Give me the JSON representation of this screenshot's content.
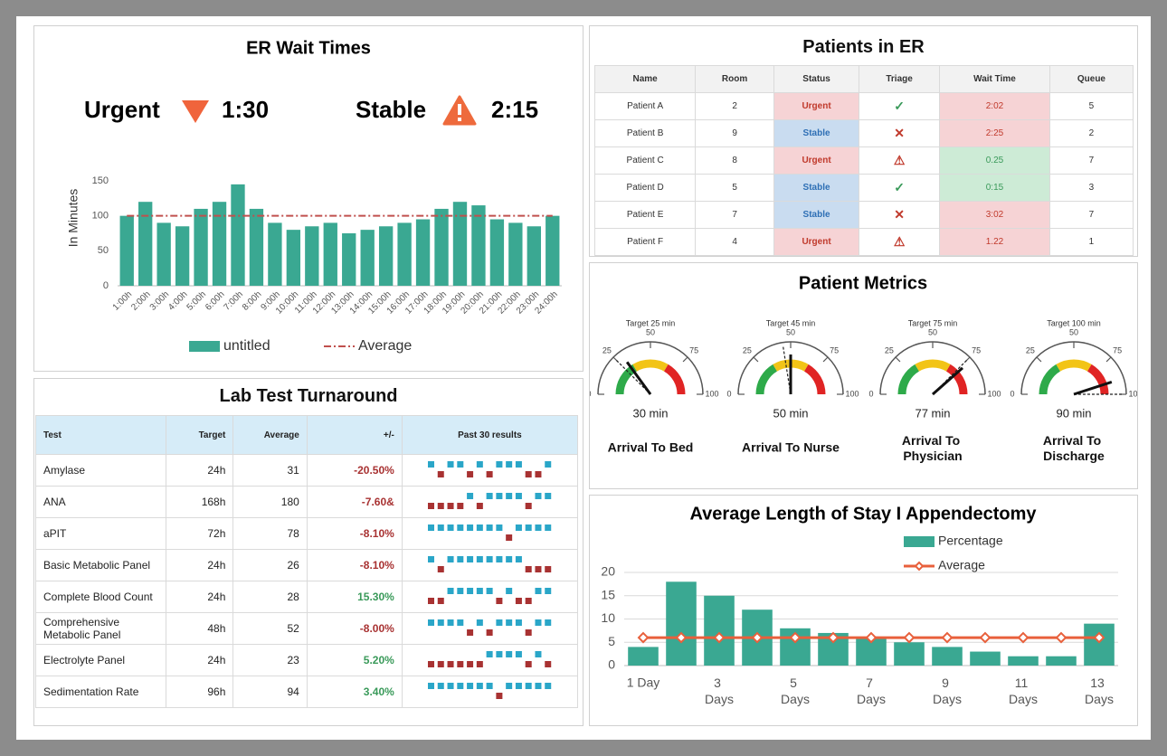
{
  "chart_data": [
    {
      "type": "bar",
      "title": "ER Wait Times",
      "ylabel": "In Minutes",
      "categories": [
        "1:00h",
        "2:00h",
        "3:00h",
        "4:00h",
        "5:00h",
        "6:00h",
        "7:00h",
        "8:00h",
        "9:00h",
        "10:00h",
        "11:00h",
        "12:00h",
        "13:00h",
        "14:00h",
        "15:00h",
        "16:00h",
        "17:00h",
        "18:00h",
        "19:00h",
        "20:00h",
        "21:00h",
        "22:00h",
        "23:00h",
        "24:00h"
      ],
      "series": [
        {
          "name": "untitled",
          "color": "#3aa892",
          "values": [
            100,
            120,
            90,
            85,
            110,
            120,
            145,
            110,
            90,
            80,
            85,
            90,
            75,
            80,
            85,
            90,
            95,
            110,
            120,
            115,
            95,
            90,
            85,
            100
          ]
        },
        {
          "name": "Average",
          "color": "#c0504d",
          "type": "line",
          "dash": true,
          "values": [
            100,
            100,
            100,
            100,
            100,
            100,
            100,
            100,
            100,
            100,
            100,
            100,
            100,
            100,
            100,
            100,
            100,
            100,
            100,
            100,
            100,
            100,
            100,
            100
          ]
        }
      ],
      "ylim": [
        0,
        150
      ],
      "yticks": [
        0,
        50,
        100,
        150
      ],
      "grid": false,
      "legend": "bottom"
    },
    {
      "type": "gauge",
      "title": "Patient Metrics",
      "lim": [
        0,
        100
      ],
      "ticks": [
        0,
        25,
        50,
        75,
        100
      ],
      "bands": [
        {
          "from": 0,
          "to": 33,
          "color": "#2eaa4a"
        },
        {
          "from": 33,
          "to": 67,
          "color": "#f2c417"
        },
        {
          "from": 67,
          "to": 100,
          "color": "#e02424"
        }
      ],
      "gauges": [
        {
          "name": "Arrival To Bed",
          "target": 25,
          "target_label": "Target 25 min",
          "value": 30,
          "value_label": "30 min"
        },
        {
          "name": "Arrival To Nurse",
          "target": 45,
          "target_label": "Target 45 min",
          "value": 50,
          "value_label": "50 min"
        },
        {
          "name": "Arrival To Physician",
          "target": 75,
          "target_label": "Target 75 min",
          "value": 77,
          "value_label": "77 min"
        },
        {
          "name": "Arrival To Discharge",
          "target": 100,
          "target_label": "Target 100 min",
          "value": 90,
          "value_label": "90 min"
        }
      ]
    },
    {
      "type": "bar",
      "title": "Average Length of Stay I Appendectomy",
      "categories": [
        "1 Day",
        null,
        "3 Days",
        null,
        "5 Days",
        null,
        "7 Days",
        null,
        "9 Days",
        null,
        "11 Days",
        null,
        "13 Days"
      ],
      "series": [
        {
          "name": "Percentage",
          "color": "#3aa892",
          "values": [
            4,
            18,
            15,
            12,
            8,
            7,
            6,
            5,
            4,
            3,
            2,
            2,
            9
          ]
        },
        {
          "name": "Average",
          "color": "#e8603c",
          "type": "line",
          "marker": "diamond",
          "values": [
            6,
            6,
            6,
            6,
            6,
            6,
            6,
            6,
            6,
            6,
            6,
            6,
            6
          ]
        }
      ],
      "ylim": [
        0,
        20
      ],
      "yticks": [
        0,
        5,
        10,
        15,
        20
      ],
      "grid": true,
      "legend": "top"
    }
  ],
  "er_kpis": [
    {
      "label": "Urgent",
      "value": "1:30"
    },
    {
      "label": "Stable",
      "value": "2:15"
    }
  ],
  "patients": {
    "title": "Patients in ER",
    "columns": [
      "Name",
      "Room",
      "Status",
      "Triage",
      "Wait Time",
      "Queue"
    ],
    "rows": [
      {
        "name": "Patient A",
        "room": 2,
        "status": "Urgent",
        "status_bg": "#f6d3d5",
        "status_fg": "#c0392b",
        "triage": "✓",
        "triage_color": "#3a9a5a",
        "wait": "2:02",
        "wait_bg": "#f6d3d5",
        "wait_fg": "#c0392b",
        "queue": 5
      },
      {
        "name": "Patient B",
        "room": 9,
        "status": "Stable",
        "status_bg": "#c9dcf0",
        "status_fg": "#2e6fb5",
        "triage": "✕",
        "triage_color": "#c0392b",
        "wait": "2:25",
        "wait_bg": "#f6d3d5",
        "wait_fg": "#c0392b",
        "queue": 2
      },
      {
        "name": "Patient C",
        "room": 8,
        "status": "Urgent",
        "status_bg": "#f6d3d5",
        "status_fg": "#c0392b",
        "triage": "⚠",
        "triage_color": "#c0392b",
        "wait": "0.25",
        "wait_bg": "#cdebd6",
        "wait_fg": "#3a9a5a",
        "queue": 7
      },
      {
        "name": "Patient D",
        "room": 5,
        "status": "Stable",
        "status_bg": "#c9dcf0",
        "status_fg": "#2e6fb5",
        "triage": "✓",
        "triage_color": "#3a9a5a",
        "wait": "0:15",
        "wait_bg": "#cdebd6",
        "wait_fg": "#3a9a5a",
        "queue": 3
      },
      {
        "name": "Patient E",
        "room": 7,
        "status": "Stable",
        "status_bg": "#c9dcf0",
        "status_fg": "#2e6fb5",
        "triage": "✕",
        "triage_color": "#c0392b",
        "wait": "3:02",
        "wait_bg": "#f6d3d5",
        "wait_fg": "#c0392b",
        "queue": 7
      },
      {
        "name": "Patient F",
        "room": 4,
        "status": "Urgent",
        "status_bg": "#f6d3d5",
        "status_fg": "#c0392b",
        "triage": "⚠",
        "triage_color": "#c0392b",
        "wait": "1.22",
        "wait_bg": "#f6d3d5",
        "wait_fg": "#c0392b",
        "queue": 1
      }
    ]
  },
  "lab": {
    "title": "Lab Test Turnaround",
    "columns": [
      "Test",
      "Target",
      "Average",
      "+/-",
      "Past 30 results"
    ],
    "up_color": "#2aa6c8",
    "down_color": "#a83232",
    "rows": [
      {
        "test": "Amylase",
        "target": "24h",
        "average": 31,
        "diff": "-20.50%",
        "diff_color": "#a83232",
        "results": [
          1,
          -1,
          1,
          1,
          -1,
          1,
          -1,
          1,
          1,
          1,
          -1,
          -1,
          1
        ]
      },
      {
        "test": "ANA",
        "target": "168h",
        "average": 180,
        "diff": "-7.60&",
        "diff_color": "#a83232",
        "results": [
          -1,
          -1,
          -1,
          -1,
          1,
          -1,
          1,
          1,
          1,
          1,
          -1,
          1,
          1
        ]
      },
      {
        "test": "aPIT",
        "target": "72h",
        "average": 78,
        "diff": "-8.10%",
        "diff_color": "#a83232",
        "results": [
          1,
          1,
          1,
          1,
          1,
          1,
          1,
          1,
          -1,
          1,
          1,
          1,
          1
        ]
      },
      {
        "test": "Basic Metabolic Panel",
        "target": "24h",
        "average": 26,
        "diff": "-8.10%",
        "diff_color": "#a83232",
        "results": [
          1,
          -1,
          1,
          1,
          1,
          1,
          1,
          1,
          1,
          1,
          -1,
          -1,
          -1
        ]
      },
      {
        "test": "Complete Blood Count",
        "target": "24h",
        "average": 28,
        "diff": "15.30%",
        "diff_color": "#3a9a5a",
        "results": [
          -1,
          -1,
          1,
          1,
          1,
          1,
          1,
          -1,
          1,
          -1,
          -1,
          1,
          1
        ]
      },
      {
        "test": "Comprehensive Metabolic Panel",
        "target": "48h",
        "average": 52,
        "diff": "-8.00%",
        "diff_color": "#a83232",
        "results": [
          1,
          1,
          1,
          1,
          -1,
          1,
          -1,
          1,
          1,
          1,
          -1,
          1,
          1
        ]
      },
      {
        "test": "Electrolyte Panel",
        "target": "24h",
        "average": 23,
        "diff": "5.20%",
        "diff_color": "#3a9a5a",
        "results": [
          -1,
          -1,
          -1,
          -1,
          -1,
          -1,
          1,
          1,
          1,
          1,
          -1,
          1,
          -1
        ]
      },
      {
        "test": "Sedimentation Rate",
        "target": "96h",
        "average": 94,
        "diff": "3.40%",
        "diff_color": "#3a9a5a",
        "results": [
          1,
          1,
          1,
          1,
          1,
          1,
          1,
          -1,
          1,
          1,
          1,
          1,
          1
        ]
      }
    ]
  }
}
